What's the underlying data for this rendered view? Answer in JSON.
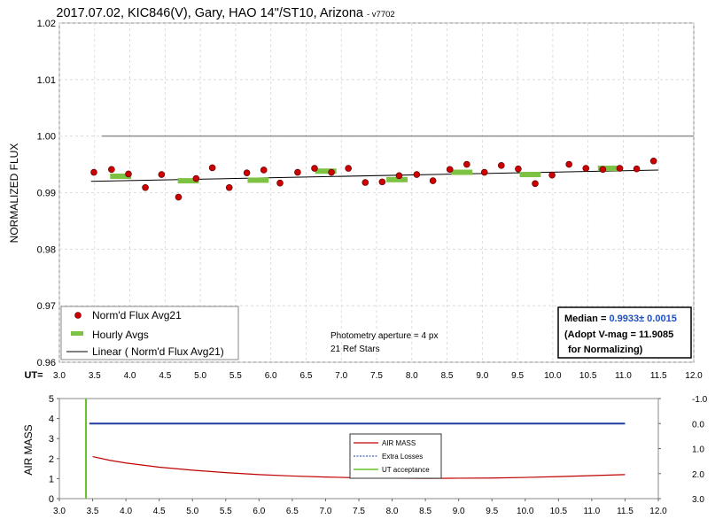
{
  "title": "2017.07.02, KIC846(V), Gary, HAO 14\"/ST10, Arizona",
  "version_tag": "- v7702",
  "chart_data": [
    {
      "type": "scatter",
      "ylabel": "NORMALIZED FLUX",
      "xlabel_prefix": "UT=",
      "xlim": [
        3.0,
        12.0
      ],
      "ylim": [
        0.96,
        1.02
      ],
      "grid": true,
      "x_ticks": [
        "3.0",
        "3.5",
        "4.0",
        "4.5",
        "5.0",
        "5.5",
        "6.0",
        "6.5",
        "7.0",
        "7.5",
        "8.0",
        "8.5",
        "9.0",
        "9.5",
        "10.0",
        "10.5",
        "11.0",
        "11.5",
        "12.0"
      ],
      "y_ticks": [
        "0.96",
        "0.97",
        "0.98",
        "0.99",
        "1.00",
        "1.01",
        "1.02"
      ],
      "reference_line": {
        "y": 1.0,
        "x": [
          3.6,
          12.0
        ]
      },
      "series": [
        {
          "name": "Norm'd Flux Avg21",
          "color": "#cc0000",
          "x": [
            3.49,
            3.74,
            3.98,
            4.22,
            4.45,
            4.69,
            4.94,
            5.17,
            5.41,
            5.66,
            5.9,
            6.13,
            6.38,
            6.62,
            6.86,
            7.1,
            7.34,
            7.58,
            7.82,
            8.07,
            8.3,
            8.54,
            8.78,
            9.03,
            9.27,
            9.51,
            9.75,
            9.99,
            10.23,
            10.47,
            10.71,
            10.95,
            11.19,
            11.43
          ],
          "y": [
            0.9936,
            0.9941,
            0.9933,
            0.9909,
            0.9932,
            0.9892,
            0.9925,
            0.9944,
            0.9909,
            0.9935,
            0.994,
            0.9917,
            0.9936,
            0.9943,
            0.9936,
            0.9943,
            0.9918,
            0.9919,
            0.993,
            0.9932,
            0.9921,
            0.9941,
            0.995,
            0.9936,
            0.9948,
            0.9942,
            0.9916,
            0.9931,
            0.995,
            0.9943,
            0.9941,
            0.9943,
            0.9942,
            0.9956
          ]
        },
        {
          "name": "Hourly Avgs",
          "color": "#7dc242",
          "x": [
            3.87,
            4.83,
            5.82,
            6.78,
            7.79,
            8.71,
            9.68,
            10.79
          ],
          "y": [
            0.9929,
            0.9921,
            0.9922,
            0.9938,
            0.9923,
            0.9936,
            0.9932,
            0.9943
          ]
        },
        {
          "name": "Linear ( Norm'd Flux Avg21)",
          "color": "#000000",
          "x": [
            3.45,
            11.5
          ],
          "y": [
            0.992,
            0.994
          ]
        }
      ],
      "legend": "bottom-left",
      "annotations": {
        "aperture": "Photometry aperture = 4 px",
        "ref_stars": "21 Ref Stars",
        "median_prefix": "Median = ",
        "median_value": "0.9933± 0.0015",
        "adopt": "(Adopt V-mag = 11.9085",
        "normalizing": "for Normalizing)"
      }
    },
    {
      "type": "line",
      "ylabel": "AIR MASS",
      "xlim": [
        3.0,
        12.0
      ],
      "ylim": [
        0,
        5
      ],
      "y2lim": [
        -1.0,
        3.0
      ],
      "x_ticks": [
        "3.0",
        "3.5",
        "4.0",
        "4.5",
        "5.0",
        "5.5",
        "6.0",
        "6.5",
        "7.0",
        "7.5",
        "8.0",
        "8.5",
        "9.0",
        "9.5",
        "10.0",
        "10.5",
        "11.0",
        "11.5",
        "12.0"
      ],
      "y_ticks": [
        "0",
        "1",
        "2",
        "3",
        "4",
        "5"
      ],
      "y2_ticks": [
        "-1.0",
        "0.0",
        "1.0",
        "2.0",
        "3.0"
      ],
      "series": [
        {
          "name": "AIR MASS",
          "color": "#c00000",
          "x": [
            3.5,
            3.75,
            4.0,
            4.5,
            5.0,
            5.5,
            6.0,
            6.5,
            7.0,
            7.5,
            8.0,
            8.5,
            9.0,
            9.5,
            10.0,
            10.5,
            11.0,
            11.5
          ],
          "y": [
            2.1,
            1.92,
            1.78,
            1.57,
            1.42,
            1.3,
            1.2,
            1.13,
            1.08,
            1.04,
            1.02,
            1.01,
            1.02,
            1.03,
            1.06,
            1.1,
            1.15,
            1.2
          ]
        },
        {
          "name": "Extra Losses",
          "color": "#1f3c9e",
          "x": [
            3.45,
            11.5
          ],
          "y": [
            0.0,
            0.0
          ]
        },
        {
          "name": "UT acceptance",
          "color": "#66c22a",
          "x": [
            3.4,
            3.4
          ],
          "y": [
            0,
            5
          ]
        }
      ],
      "legend": "center"
    }
  ]
}
